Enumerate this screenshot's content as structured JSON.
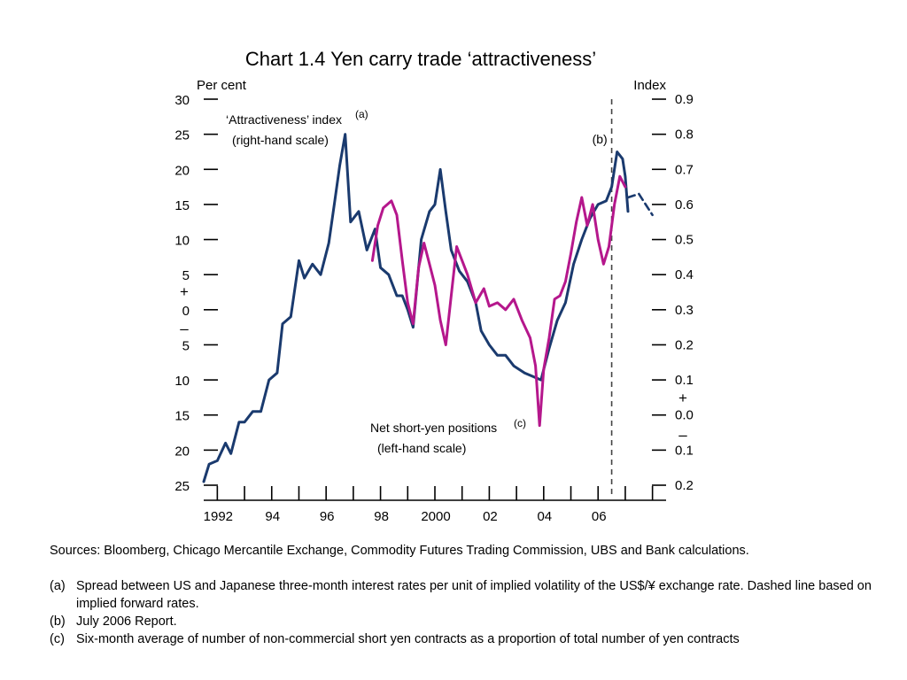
{
  "title": "Chart 1.4  Yen carry trade ‘attractiveness’",
  "chart_data": {
    "type": "line",
    "left_axis": {
      "unit_label": "Per cent",
      "range": [
        -25,
        30
      ],
      "ticks": [
        {
          "value": 30,
          "label": "30"
        },
        {
          "value": 25,
          "label": "25"
        },
        {
          "value": 20,
          "label": "20"
        },
        {
          "value": 15,
          "label": "15"
        },
        {
          "value": 10,
          "label": "10"
        },
        {
          "value": 5,
          "label": "5"
        },
        {
          "value": 0,
          "label": "0"
        },
        {
          "value": -5,
          "label": "5"
        },
        {
          "value": -10,
          "label": "10"
        },
        {
          "value": -15,
          "label": "15"
        },
        {
          "value": -20,
          "label": "20"
        },
        {
          "value": -25,
          "label": "25"
        }
      ],
      "plus_sign": "+",
      "minus_sign": "–"
    },
    "right_axis": {
      "unit_label": "Index",
      "range": [
        -0.2,
        0.9
      ],
      "ticks": [
        {
          "value": 0.9,
          "label": "0.9"
        },
        {
          "value": 0.8,
          "label": "0.8"
        },
        {
          "value": 0.7,
          "label": "0.7"
        },
        {
          "value": 0.6,
          "label": "0.6"
        },
        {
          "value": 0.5,
          "label": "0.5"
        },
        {
          "value": 0.4,
          "label": "0.4"
        },
        {
          "value": 0.3,
          "label": "0.3"
        },
        {
          "value": 0.2,
          "label": "0.2"
        },
        {
          "value": 0.1,
          "label": "0.1"
        },
        {
          "value": 0.0,
          "label": "0.0"
        },
        {
          "value": -0.1,
          "label": "0.1"
        },
        {
          "value": -0.2,
          "label": "0.2"
        }
      ],
      "plus_sign": "+",
      "minus_sign": "–"
    },
    "x_axis": {
      "range": [
        1991.5,
        2008.5
      ],
      "tick_labels": [
        {
          "value": 1992,
          "label": "1992"
        },
        {
          "value": 1994,
          "label": "94"
        },
        {
          "value": 1996,
          "label": "96"
        },
        {
          "value": 1998,
          "label": "98"
        },
        {
          "value": 2000,
          "label": "2000"
        },
        {
          "value": 2002,
          "label": "02"
        },
        {
          "value": 2004,
          "label": "04"
        },
        {
          "value": 2006,
          "label": "06"
        }
      ]
    },
    "marker": {
      "x": 2006.5,
      "label": "(b)"
    },
    "series": [
      {
        "name": "‘Attractiveness’ index",
        "name_note": "(a)",
        "scale_note": "(right-hand scale)",
        "axis": "right",
        "color": "#1a3a6e",
        "points": [
          [
            1991.5,
            -0.19
          ],
          [
            1991.7,
            -0.14
          ],
          [
            1992.0,
            -0.13
          ],
          [
            1992.3,
            -0.08
          ],
          [
            1992.5,
            -0.11
          ],
          [
            1992.8,
            -0.02
          ],
          [
            1993.0,
            -0.02
          ],
          [
            1993.3,
            0.01
          ],
          [
            1993.6,
            0.01
          ],
          [
            1993.9,
            0.1
          ],
          [
            1994.2,
            0.12
          ],
          [
            1994.4,
            0.26
          ],
          [
            1994.7,
            0.28
          ],
          [
            1995.0,
            0.44
          ],
          [
            1995.2,
            0.39
          ],
          [
            1995.5,
            0.43
          ],
          [
            1995.8,
            0.4
          ],
          [
            1996.1,
            0.49
          ],
          [
            1996.3,
            0.6
          ],
          [
            1996.5,
            0.71
          ],
          [
            1996.7,
            0.8
          ],
          [
            1996.9,
            0.55
          ],
          [
            1997.2,
            0.58
          ],
          [
            1997.5,
            0.47
          ],
          [
            1997.8,
            0.53
          ],
          [
            1998.0,
            0.42
          ],
          [
            1998.3,
            0.4
          ],
          [
            1998.6,
            0.34
          ],
          [
            1998.8,
            0.34
          ],
          [
            1999.0,
            0.3
          ],
          [
            1999.2,
            0.25
          ],
          [
            1999.5,
            0.5
          ],
          [
            1999.8,
            0.58
          ],
          [
            2000.0,
            0.6
          ],
          [
            2000.2,
            0.7
          ],
          [
            2000.4,
            0.58
          ],
          [
            2000.6,
            0.47
          ],
          [
            2000.9,
            0.41
          ],
          [
            2001.2,
            0.38
          ],
          [
            2001.5,
            0.32
          ],
          [
            2001.7,
            0.24
          ],
          [
            2002.0,
            0.2
          ],
          [
            2002.3,
            0.17
          ],
          [
            2002.6,
            0.17
          ],
          [
            2002.9,
            0.14
          ],
          [
            2003.3,
            0.12
          ],
          [
            2003.6,
            0.11
          ],
          [
            2003.9,
            0.1
          ],
          [
            2004.2,
            0.19
          ],
          [
            2004.5,
            0.27
          ],
          [
            2004.8,
            0.32
          ],
          [
            2005.1,
            0.43
          ],
          [
            2005.4,
            0.5
          ],
          [
            2005.7,
            0.56
          ],
          [
            2006.0,
            0.6
          ],
          [
            2006.3,
            0.61
          ],
          [
            2006.5,
            0.65
          ],
          [
            2006.7,
            0.75
          ],
          [
            2006.9,
            0.73
          ],
          [
            2007.0,
            0.68
          ],
          [
            2007.1,
            0.58
          ]
        ]
      },
      {
        "name": "‘Attractiveness’ index (implied forward rates)",
        "axis": "right",
        "color": "#1a3a6e",
        "dashed": true,
        "points": [
          [
            2007.1,
            0.62
          ],
          [
            2007.5,
            0.63
          ],
          [
            2008.0,
            0.57
          ]
        ]
      },
      {
        "name": "Net short-yen positions",
        "name_note": "(c)",
        "scale_note": "(left-hand scale)",
        "axis": "left",
        "color": "#b5178c",
        "points": [
          [
            1997.7,
            7.0
          ],
          [
            1997.9,
            12.0
          ],
          [
            1998.1,
            14.5
          ],
          [
            1998.4,
            15.5
          ],
          [
            1998.6,
            13.5
          ],
          [
            1998.8,
            7.0
          ],
          [
            1999.0,
            1.0
          ],
          [
            1999.2,
            -2.0
          ],
          [
            1999.4,
            6.0
          ],
          [
            1999.6,
            9.5
          ],
          [
            1999.8,
            6.5
          ],
          [
            2000.0,
            3.5
          ],
          [
            2000.2,
            -1.5
          ],
          [
            2000.4,
            -5.0
          ],
          [
            2000.6,
            2.0
          ],
          [
            2000.8,
            9.0
          ],
          [
            2001.0,
            7.0
          ],
          [
            2001.2,
            5.0
          ],
          [
            2001.5,
            1.0
          ],
          [
            2001.8,
            3.0
          ],
          [
            2002.0,
            0.5
          ],
          [
            2002.3,
            1.0
          ],
          [
            2002.6,
            0.0
          ],
          [
            2002.9,
            1.5
          ],
          [
            2003.2,
            -1.5
          ],
          [
            2003.5,
            -4.0
          ],
          [
            2003.7,
            -8.0
          ],
          [
            2003.85,
            -16.5
          ],
          [
            2004.0,
            -8.5
          ],
          [
            2004.2,
            -4.0
          ],
          [
            2004.4,
            1.5
          ],
          [
            2004.6,
            2.0
          ],
          [
            2004.8,
            4.0
          ],
          [
            2005.0,
            8.0
          ],
          [
            2005.2,
            12.5
          ],
          [
            2005.4,
            16.0
          ],
          [
            2005.6,
            12.0
          ],
          [
            2005.8,
            15.0
          ],
          [
            2006.0,
            10.0
          ],
          [
            2006.2,
            6.5
          ],
          [
            2006.4,
            9.0
          ],
          [
            2006.6,
            15.0
          ],
          [
            2006.8,
            19.0
          ],
          [
            2007.0,
            17.5
          ]
        ]
      }
    ]
  },
  "notes": {
    "sources": "Sources:  Bloomberg, Chicago Mercantile Exchange, Commodity Futures Trading Commission, UBS and Bank calculations.",
    "footnotes": [
      {
        "key": "(a)",
        "text": "Spread between US and Japanese three-month interest rates per unit of implied volatility of the US$/¥ exchange rate. Dashed line based on implied forward rates."
      },
      {
        "key": "(b)",
        "text": "July 2006 Report."
      },
      {
        "key": "(c)",
        "text": "Six-month average of number of non-commercial short yen contracts as a proportion of total number of yen contracts"
      }
    ]
  }
}
